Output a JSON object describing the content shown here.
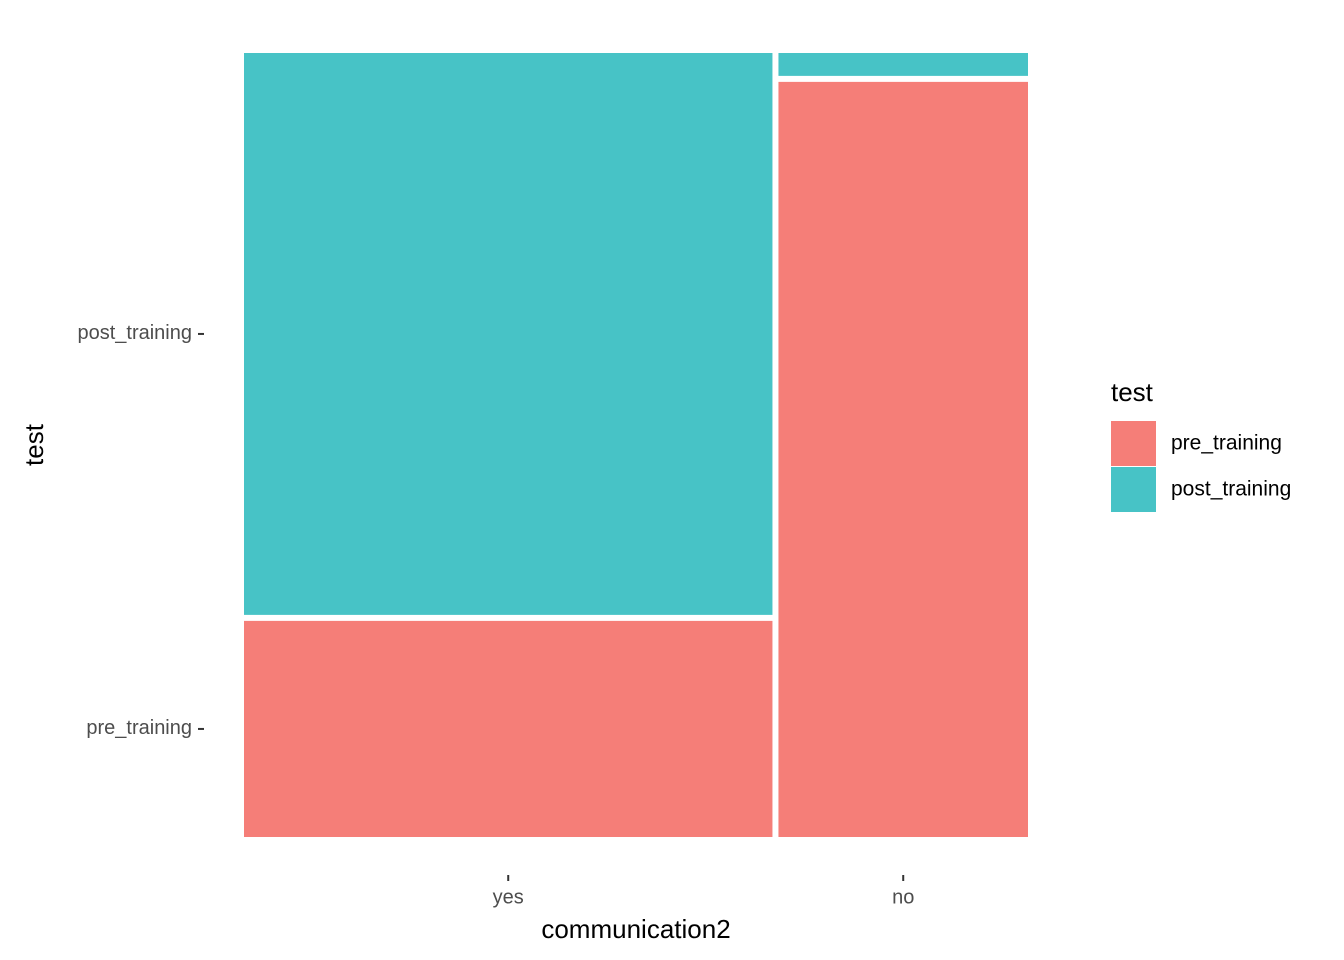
{
  "chart_data": {
    "type": "mosaic",
    "x_label": "communication2",
    "y_label": "test",
    "categories": [
      "yes",
      "no"
    ],
    "series": [
      {
        "name": "pre_training",
        "color": "#F57E78",
        "values": [
          20,
          33
        ]
      },
      {
        "name": "post_training",
        "color": "#47C3C6",
        "values": [
          52,
          1
        ]
      }
    ],
    "legend_title": "test",
    "legend": "right"
  }
}
